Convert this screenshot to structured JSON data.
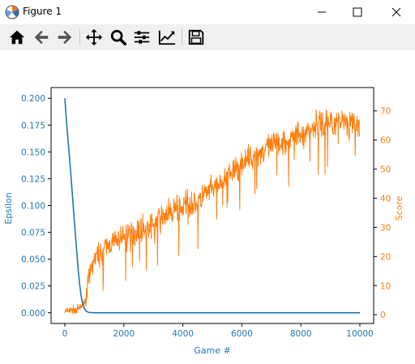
{
  "window": {
    "title": "Figure 1",
    "controls": [
      "minimize",
      "maximize",
      "close"
    ]
  },
  "toolbar": {
    "buttons": [
      {
        "name": "home-icon",
        "tooltip": "Reset original view"
      },
      {
        "name": "back-icon",
        "tooltip": "Back to previous view"
      },
      {
        "name": "forward-icon",
        "tooltip": "Forward to next view"
      },
      {
        "name": "pan-icon",
        "tooltip": "Pan axes"
      },
      {
        "name": "zoom-icon",
        "tooltip": "Zoom to rectangle"
      },
      {
        "name": "subplots-icon",
        "tooltip": "Configure subplots"
      },
      {
        "name": "customize-icon",
        "tooltip": "Edit axis parameters"
      },
      {
        "name": "save-icon",
        "tooltip": "Save the figure"
      }
    ]
  },
  "chart_data": {
    "type": "line",
    "title": "",
    "xlabel": "Game #",
    "ylabel_left": "Epsilon",
    "ylabel_right": "Score",
    "xlim": [
      0,
      10000
    ],
    "xticks": [
      0,
      2000,
      4000,
      6000,
      8000,
      10000
    ],
    "ylim_left": [
      -0.01,
      0.21
    ],
    "yticks_left": [
      "0.000",
      "0.025",
      "0.050",
      "0.075",
      "0.100",
      "0.125",
      "0.150",
      "0.175",
      "0.200"
    ],
    "ylim_right": [
      -3,
      78
    ],
    "yticks_right": [
      0,
      10,
      20,
      30,
      40,
      50,
      60,
      70
    ],
    "grid": false,
    "colors": {
      "epsilon": "#1f77b4",
      "score": "#ff7f0e"
    },
    "series": [
      {
        "axis": "left",
        "x": [
          0,
          50,
          100,
          150,
          200,
          250,
          300,
          350,
          400,
          450,
          500,
          550,
          600,
          650,
          700,
          750,
          800,
          850,
          900,
          1000,
          2000,
          4000,
          6000,
          8000,
          10000
        ],
        "values": [
          0.2,
          0.181,
          0.164,
          0.147,
          0.13,
          0.112,
          0.094,
          0.076,
          0.058,
          0.041,
          0.027,
          0.016,
          0.009,
          0.005,
          0.002,
          0.001,
          0.0004,
          0.0002,
          0.0001,
          0.0,
          0.0,
          0.0,
          0.0,
          0.0,
          0.0
        ]
      },
      {
        "axis": "right",
        "x": [
          0,
          500,
          700,
          800,
          1000,
          1500,
          2000,
          2500,
          3000,
          3500,
          4000,
          4500,
          5000,
          5500,
          6000,
          6500,
          7000,
          7500,
          8000,
          8500,
          9000,
          9500,
          10000
        ],
        "values": [
          1,
          2,
          5,
          12,
          19,
          24,
          27,
          29,
          31,
          35,
          37,
          39,
          43,
          47,
          52,
          55,
          58,
          60,
          62,
          65,
          66,
          67,
          64
        ]
      }
    ]
  }
}
